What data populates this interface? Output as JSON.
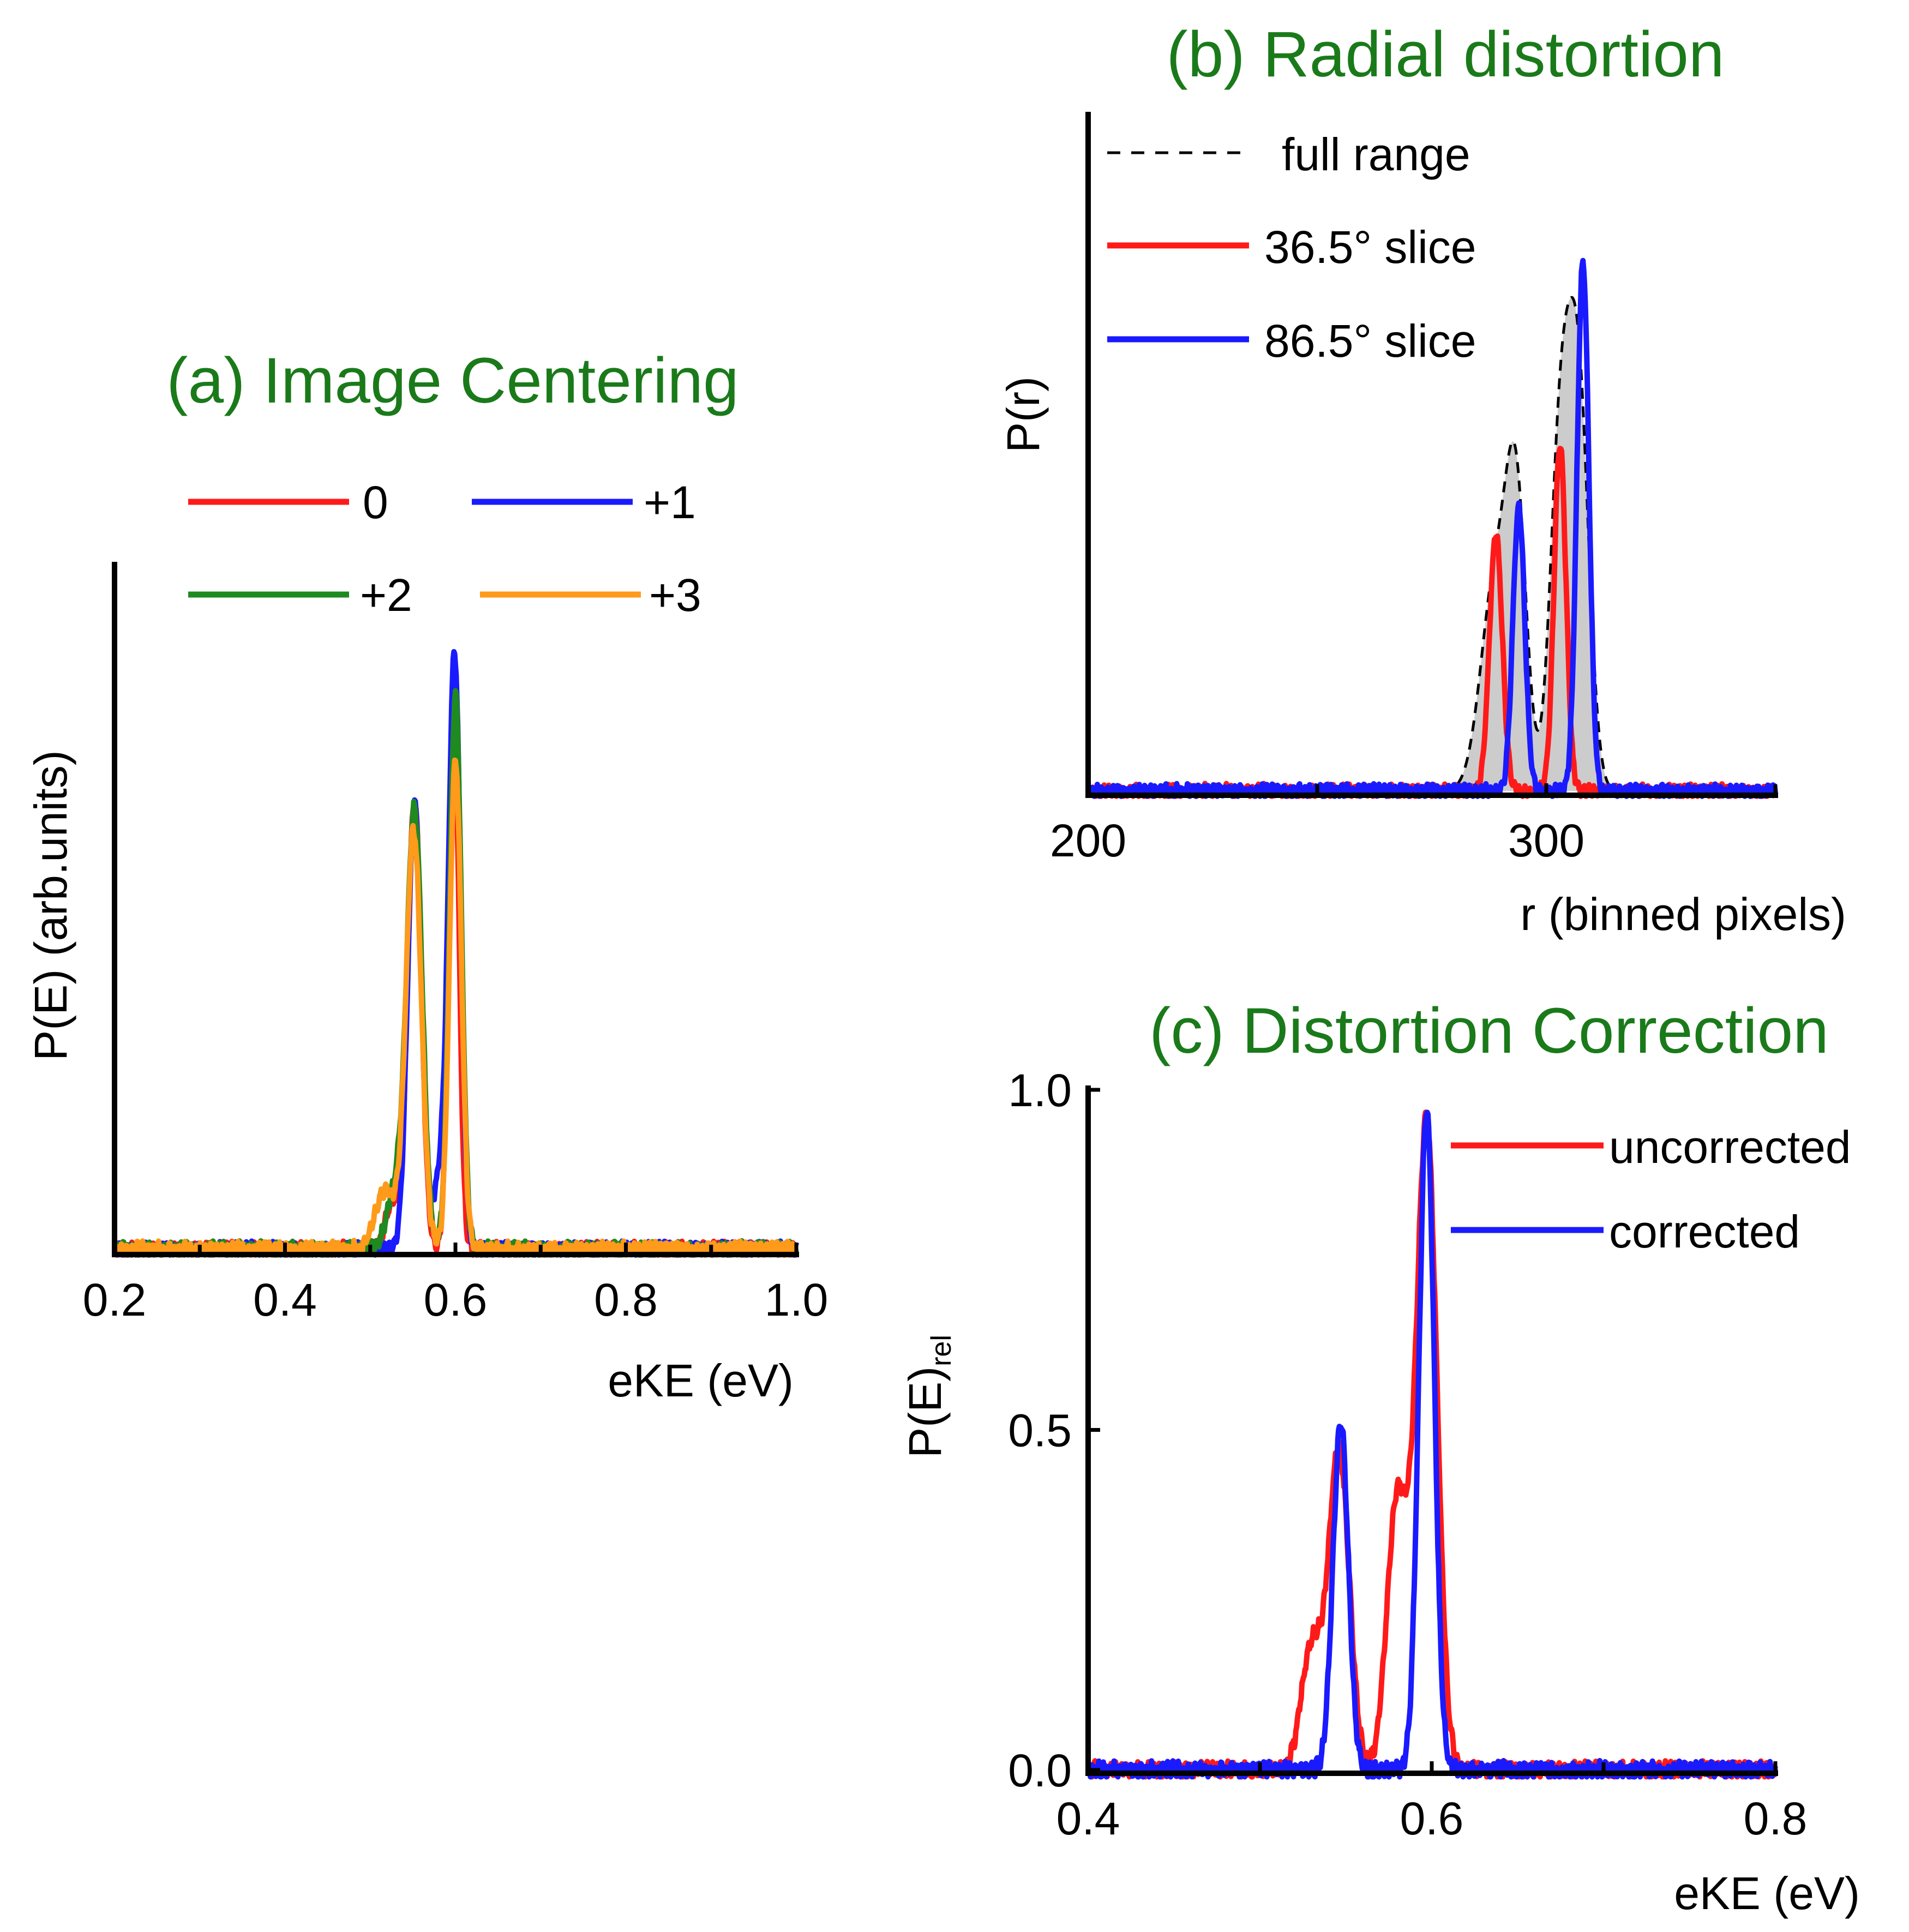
{
  "colors": {
    "red": "#ff1a1a",
    "blue": "#1a1aff",
    "green": "#1f8a1f",
    "orange": "#ff9a1a",
    "title_green": "#1a7a1a",
    "fill_gray": "#cccccc",
    "black": "#000000"
  },
  "chart_data": [
    {
      "id": "a",
      "type": "line",
      "title": "(a) Image Centering",
      "xlabel": "eKE (eV)",
      "ylabel": "P(E) (arb.units)",
      "xlim": [
        0.2,
        1.0
      ],
      "ylim": [
        0,
        1.0
      ],
      "x_ticks": [
        "0.2",
        "0.4",
        "0.6",
        "0.8",
        "1.0"
      ],
      "x_tick_values": [
        0.2,
        0.4,
        0.6,
        0.8,
        1.0
      ],
      "legend_placement": "top",
      "series": [
        {
          "name": "0",
          "color_key": "red",
          "peaks": [
            {
              "center": 0.552,
              "height": 0.76,
              "width": 0.008
            },
            {
              "center": 0.598,
              "height": 0.94,
              "width": 0.006
            },
            {
              "center": 0.526,
              "height": 0.08,
              "width": 0.008
            }
          ]
        },
        {
          "name": "+1",
          "color_key": "blue",
          "peaks": [
            {
              "center": 0.552,
              "height": 0.76,
              "width": 0.008
            },
            {
              "center": 0.599,
              "height": 1.0,
              "width": 0.007
            },
            {
              "center": 0.582,
              "height": 0.12,
              "width": 0.008
            }
          ]
        },
        {
          "name": "+2",
          "color_key": "green",
          "peaks": [
            {
              "center": 0.552,
              "height": 0.74,
              "width": 0.009
            },
            {
              "center": 0.6,
              "height": 0.94,
              "width": 0.007
            },
            {
              "center": 0.53,
              "height": 0.1,
              "width": 0.01
            }
          ]
        },
        {
          "name": "+3",
          "color_key": "orange",
          "peaks": [
            {
              "center": 0.551,
              "height": 0.71,
              "width": 0.009
            },
            {
              "center": 0.6,
              "height": 0.83,
              "width": 0.007
            },
            {
              "center": 0.518,
              "height": 0.1,
              "width": 0.012
            }
          ]
        }
      ]
    },
    {
      "id": "b",
      "type": "line",
      "title": "(b) Radial distortion",
      "xlabel": "r (binned pixels)",
      "ylabel": "P(r)",
      "xlim": [
        200,
        350
      ],
      "ylim": [
        0,
        1.0
      ],
      "x_ticks": [
        "200",
        "300"
      ],
      "x_tick_values": [
        200,
        300
      ],
      "x_minor_tick_values": [
        250,
        350
      ],
      "legend_placement": "top-left",
      "series": [
        {
          "name": "full range",
          "color_key": "black",
          "style": "dashed",
          "fill": true,
          "peaks": [
            {
              "center": 289,
              "height": 0.4,
              "width": 3.2
            },
            {
              "center": 293.5,
              "height": 0.48,
              "width": 2.2
            },
            {
              "center": 303,
              "height": 0.62,
              "width": 2.2
            },
            {
              "center": 307,
              "height": 0.74,
              "width": 2.3
            }
          ]
        },
        {
          "name": "36.5° slice",
          "color_key": "red",
          "peaks": [
            {
              "center": 289,
              "height": 0.48,
              "width": 1.4
            },
            {
              "center": 303,
              "height": 0.65,
              "width": 1.3
            }
          ]
        },
        {
          "name": "86.5° slice",
          "color_key": "blue",
          "peaks": [
            {
              "center": 294,
              "height": 0.53,
              "width": 1.3
            },
            {
              "center": 308,
              "height": 0.99,
              "width": 1.3
            }
          ]
        }
      ]
    },
    {
      "id": "c",
      "type": "line",
      "title": "(c) Distortion Correction",
      "xlabel": "eKE (eV)",
      "ylabel": "P(E)",
      "ylabel_subscript": "rel",
      "xlim": [
        0.4,
        0.8
      ],
      "ylim": [
        0,
        1.0
      ],
      "x_ticks": [
        "0.4",
        "0.6",
        "0.8"
      ],
      "x_tick_values": [
        0.4,
        0.6,
        0.8
      ],
      "x_minor_tick_values": [
        0.5,
        0.7
      ],
      "y_ticks": [
        "0.0",
        "0.5",
        "1.0"
      ],
      "y_tick_values": [
        0.0,
        0.5,
        1.0
      ],
      "legend_placement": "top-right",
      "series": [
        {
          "name": "uncorrected",
          "color_key": "red",
          "peaks": [
            {
              "center": 0.546,
              "height": 0.47,
              "width": 0.006
            },
            {
              "center": 0.53,
              "height": 0.18,
              "width": 0.006
            },
            {
              "center": 0.597,
              "height": 0.95,
              "width": 0.006
            },
            {
              "center": 0.58,
              "height": 0.4,
              "width": 0.006
            }
          ]
        },
        {
          "name": "corrected",
          "color_key": "blue",
          "peaks": [
            {
              "center": 0.547,
              "height": 0.51,
              "width": 0.0045
            },
            {
              "center": 0.597,
              "height": 0.97,
              "width": 0.0045
            }
          ]
        }
      ]
    }
  ]
}
